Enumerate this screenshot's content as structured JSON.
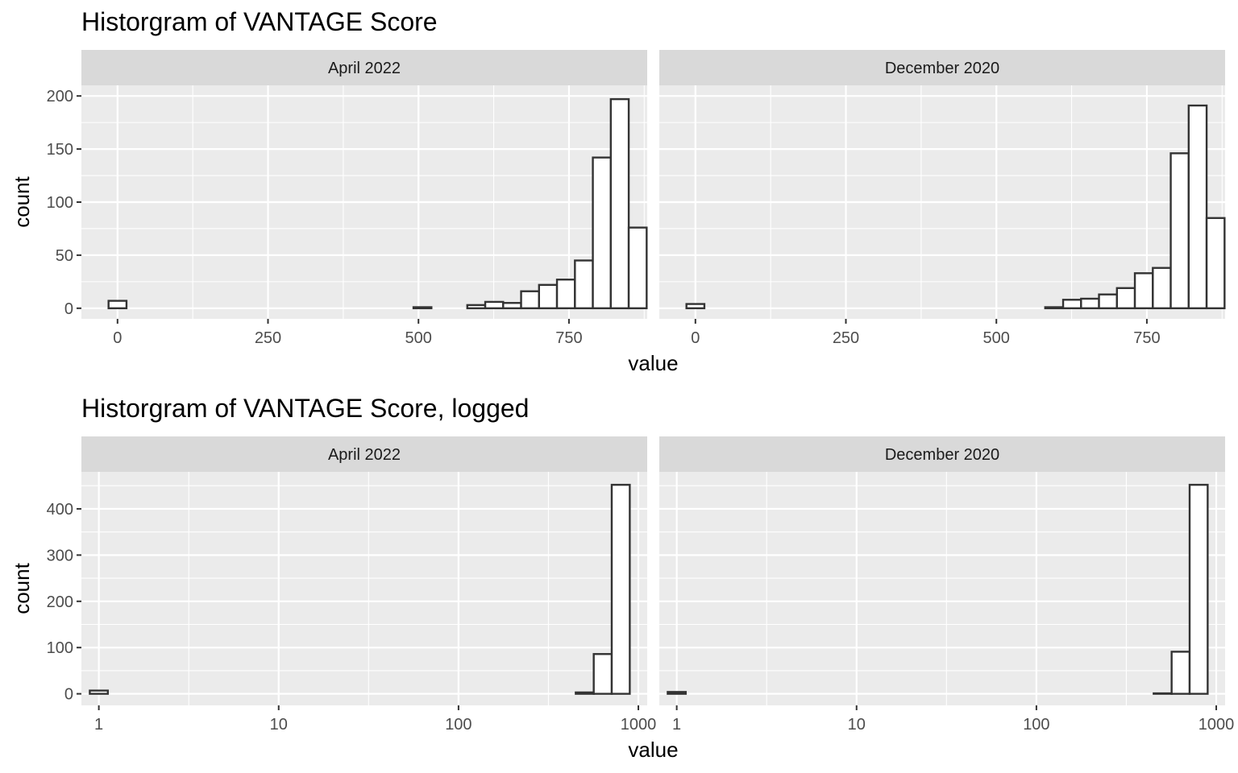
{
  "chart_data": [
    {
      "type": "bar",
      "title": "Historgram of VANTAGE Score",
      "xlabel": "value",
      "ylabel": "count",
      "x_scale": "linear",
      "xlim": [
        -60,
        880
      ],
      "ylim": [
        -10,
        210
      ],
      "x_breaks": [
        0,
        250,
        500,
        750
      ],
      "x_tick_labels": [
        "0",
        "250",
        "500",
        "750"
      ],
      "y_breaks": [
        0,
        50,
        100,
        150,
        200
      ],
      "y_tick_labels": [
        "0",
        "50",
        "100",
        "150",
        "200"
      ],
      "grid": true,
      "panels": [
        {
          "label": "April 2022",
          "bars": [
            {
              "x": 0,
              "count": 7
            },
            {
              "x": 29.8,
              "count": 0
            },
            {
              "x": 59.6,
              "count": 0
            },
            {
              "x": 89.4,
              "count": 0
            },
            {
              "x": 119.2,
              "count": 0
            },
            {
              "x": 149,
              "count": 0
            },
            {
              "x": 178.8,
              "count": 0
            },
            {
              "x": 208.6,
              "count": 0
            },
            {
              "x": 238.4,
              "count": 0
            },
            {
              "x": 268.2,
              "count": 0
            },
            {
              "x": 298,
              "count": 0
            },
            {
              "x": 327.8,
              "count": 0
            },
            {
              "x": 357.6,
              "count": 0
            },
            {
              "x": 387.4,
              "count": 0
            },
            {
              "x": 417.2,
              "count": 0
            },
            {
              "x": 447,
              "count": 0
            },
            {
              "x": 476.8,
              "count": 0
            },
            {
              "x": 506.6,
              "count": 1
            },
            {
              "x": 536.4,
              "count": 0
            },
            {
              "x": 566.2,
              "count": 0
            },
            {
              "x": 596,
              "count": 3
            },
            {
              "x": 625.8,
              "count": 6
            },
            {
              "x": 655.6,
              "count": 5
            },
            {
              "x": 685.4,
              "count": 16
            },
            {
              "x": 715.2,
              "count": 22
            },
            {
              "x": 745,
              "count": 27
            },
            {
              "x": 774.8,
              "count": 45
            },
            {
              "x": 804.6,
              "count": 142
            },
            {
              "x": 834.4,
              "count": 197
            },
            {
              "x": 864.2,
              "count": 76
            }
          ]
        },
        {
          "label": "December 2020",
          "bars": [
            {
              "x": 0,
              "count": 4
            },
            {
              "x": 29.8,
              "count": 0
            },
            {
              "x": 59.6,
              "count": 0
            },
            {
              "x": 89.4,
              "count": 0
            },
            {
              "x": 119.2,
              "count": 0
            },
            {
              "x": 149,
              "count": 0
            },
            {
              "x": 178.8,
              "count": 0
            },
            {
              "x": 208.6,
              "count": 0
            },
            {
              "x": 238.4,
              "count": 0
            },
            {
              "x": 268.2,
              "count": 0
            },
            {
              "x": 298,
              "count": 0
            },
            {
              "x": 327.8,
              "count": 0
            },
            {
              "x": 357.6,
              "count": 0
            },
            {
              "x": 387.4,
              "count": 0
            },
            {
              "x": 417.2,
              "count": 0
            },
            {
              "x": 447,
              "count": 0
            },
            {
              "x": 476.8,
              "count": 0
            },
            {
              "x": 506.6,
              "count": 0
            },
            {
              "x": 536.4,
              "count": 0
            },
            {
              "x": 566.2,
              "count": 0
            },
            {
              "x": 596,
              "count": 1
            },
            {
              "x": 625.8,
              "count": 8
            },
            {
              "x": 655.6,
              "count": 9
            },
            {
              "x": 685.4,
              "count": 13
            },
            {
              "x": 715.2,
              "count": 19
            },
            {
              "x": 745,
              "count": 33
            },
            {
              "x": 774.8,
              "count": 38
            },
            {
              "x": 804.6,
              "count": 146
            },
            {
              "x": 834.4,
              "count": 191
            },
            {
              "x": 864.2,
              "count": 85
            }
          ]
        }
      ]
    },
    {
      "type": "bar",
      "title": "Historgram of VANTAGE Score, logged",
      "xlabel": "value",
      "ylabel": "count",
      "x_scale": "log10",
      "xlim": [
        0.8,
        1120
      ],
      "ylim": [
        -25,
        480
      ],
      "x_breaks": [
        1,
        10,
        100,
        1000
      ],
      "x_tick_labels": [
        "1",
        "10",
        "100",
        "1000"
      ],
      "y_breaks": [
        0,
        100,
        200,
        300,
        400
      ],
      "y_tick_labels": [
        "0",
        "100",
        "200",
        "300",
        "400"
      ],
      "grid": true,
      "panels": [
        {
          "label": "April 2022",
          "bars": [
            {
              "x": 1,
              "count": 7
            },
            {
              "x": 1.26,
              "count": 0
            },
            {
              "x": 1.59,
              "count": 0
            },
            {
              "x": 2,
              "count": 0
            },
            {
              "x": 2.52,
              "count": 0
            },
            {
              "x": 3.17,
              "count": 0
            },
            {
              "x": 4,
              "count": 0
            },
            {
              "x": 5.03,
              "count": 0
            },
            {
              "x": 6.34,
              "count": 0
            },
            {
              "x": 7.98,
              "count": 0
            },
            {
              "x": 10.04,
              "count": 0
            },
            {
              "x": 12.65,
              "count": 0
            },
            {
              "x": 15.92,
              "count": 0
            },
            {
              "x": 20.05,
              "count": 0
            },
            {
              "x": 25.24,
              "count": 0
            },
            {
              "x": 31.77,
              "count": 0
            },
            {
              "x": 40,
              "count": 0
            },
            {
              "x": 50.36,
              "count": 0
            },
            {
              "x": 63.4,
              "count": 0
            },
            {
              "x": 79.82,
              "count": 0
            },
            {
              "x": 100.5,
              "count": 0
            },
            {
              "x": 126.5,
              "count": 0
            },
            {
              "x": 159.3,
              "count": 0
            },
            {
              "x": 200.5,
              "count": 0
            },
            {
              "x": 252.4,
              "count": 0
            },
            {
              "x": 317.8,
              "count": 0
            },
            {
              "x": 400,
              "count": 0
            },
            {
              "x": 503.6,
              "count": 3
            },
            {
              "x": 634,
              "count": 86
            },
            {
              "x": 798.2,
              "count": 452
            }
          ]
        },
        {
          "label": "December 2020",
          "bars": [
            {
              "x": 1,
              "count": 4
            },
            {
              "x": 1.26,
              "count": 0
            },
            {
              "x": 1.59,
              "count": 0
            },
            {
              "x": 2,
              "count": 0
            },
            {
              "x": 2.52,
              "count": 0
            },
            {
              "x": 3.17,
              "count": 0
            },
            {
              "x": 4,
              "count": 0
            },
            {
              "x": 5.03,
              "count": 0
            },
            {
              "x": 6.34,
              "count": 0
            },
            {
              "x": 7.98,
              "count": 0
            },
            {
              "x": 10.04,
              "count": 0
            },
            {
              "x": 12.65,
              "count": 0
            },
            {
              "x": 15.92,
              "count": 0
            },
            {
              "x": 20.05,
              "count": 0
            },
            {
              "x": 25.24,
              "count": 0
            },
            {
              "x": 31.77,
              "count": 0
            },
            {
              "x": 40,
              "count": 0
            },
            {
              "x": 50.36,
              "count": 0
            },
            {
              "x": 63.4,
              "count": 0
            },
            {
              "x": 79.82,
              "count": 0
            },
            {
              "x": 100.5,
              "count": 0
            },
            {
              "x": 126.5,
              "count": 0
            },
            {
              "x": 159.3,
              "count": 0
            },
            {
              "x": 200.5,
              "count": 0
            },
            {
              "x": 252.4,
              "count": 0
            },
            {
              "x": 317.8,
              "count": 0
            },
            {
              "x": 400,
              "count": 0
            },
            {
              "x": 503.6,
              "count": 1
            },
            {
              "x": 634,
              "count": 91
            },
            {
              "x": 798.2,
              "count": 452
            }
          ]
        }
      ]
    }
  ]
}
